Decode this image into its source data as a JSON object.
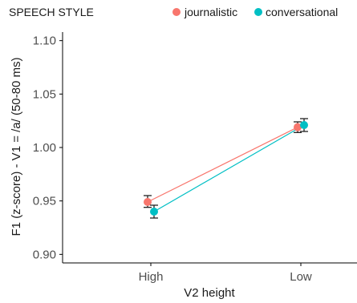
{
  "chart_data": {
    "type": "line",
    "legend": {
      "title": "SPEECH STYLE",
      "position": "top"
    },
    "categories": [
      "High",
      "Low"
    ],
    "xlabel": "V2 height",
    "ylabel": "F1 (z-score) - V1 = /a/ (50-80 ms)",
    "ylim": [
      0.895,
      1.105
    ],
    "yticks": [
      0.9,
      0.95,
      1.0,
      1.05,
      1.1
    ],
    "ytick_labels": [
      "0.90",
      "0.95",
      "1.00",
      "1.05",
      "1.10"
    ],
    "grid": false,
    "series": [
      {
        "name": "journalistic",
        "color": "#F8766D",
        "values": [
          0.949,
          1.019
        ],
        "error_low": [
          0.944,
          1.014
        ],
        "error_high": [
          0.955,
          1.024
        ]
      },
      {
        "name": "conversational",
        "color": "#00BFC4",
        "values": [
          0.94,
          1.021
        ],
        "error_low": [
          0.934,
          1.015
        ],
        "error_high": [
          0.946,
          1.027
        ]
      }
    ]
  }
}
